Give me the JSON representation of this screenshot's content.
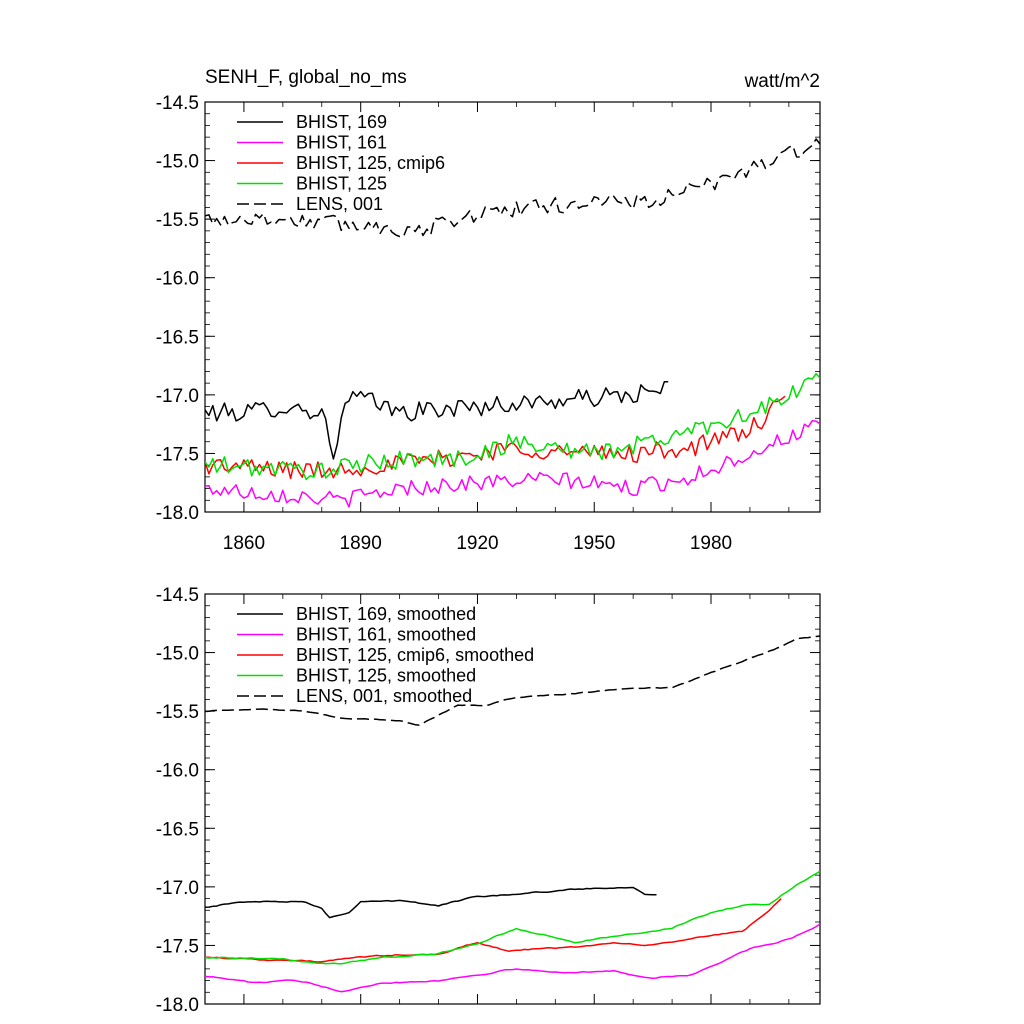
{
  "header": {
    "title_left": "SENH_F, global_no_ms",
    "title_right": "watt/m^2"
  },
  "colors": {
    "BHIST_169": "#000000",
    "BHIST_161": "#ff00ff",
    "BHIST_125_cmip6": "#ff0000",
    "BHIST_125": "#00e000",
    "LENS_001": "#000000"
  },
  "chart_data": [
    {
      "type": "line",
      "title": "SENH_F, global_no_ms",
      "units": "watt/m^2",
      "xlim": [
        1850,
        2008
      ],
      "ylim": [
        -18.0,
        -14.5
      ],
      "x_ticks": [
        1860,
        1890,
        1920,
        1950,
        1980
      ],
      "y_ticks": [
        -18.0,
        -17.5,
        -17.0,
        -16.5,
        -16.0,
        -15.5,
        -15.0,
        -14.5
      ],
      "y_tick_labels": [
        "-18.0",
        "-17.5",
        "-17.0",
        "-16.5",
        "-16.0",
        "-15.5",
        "-15.0",
        "-14.5"
      ],
      "x_tick_labels": [
        "1860",
        "1890",
        "1920",
        "1950",
        "1980"
      ],
      "legend_position": "top-left",
      "series": [
        {
          "name": "BHIST, 169",
          "color": "#000000",
          "dash": "solid",
          "x_start": 1850,
          "x_end": 1969,
          "keypoints": [
            [
              1850,
              -17.15
            ],
            [
              1860,
              -17.15
            ],
            [
              1870,
              -17.1
            ],
            [
              1880,
              -17.15
            ],
            [
              1883,
              -17.5
            ],
            [
              1885,
              -17.2
            ],
            [
              1888,
              -17.0
            ],
            [
              1900,
              -17.15
            ],
            [
              1920,
              -17.1
            ],
            [
              1940,
              -17.05
            ],
            [
              1960,
              -17.0
            ],
            [
              1969,
              -16.95
            ]
          ],
          "noise": 0.08
        },
        {
          "name": "BHIST, 161",
          "color": "#ff00ff",
          "dash": "solid",
          "x_start": 1850,
          "x_end": 2008,
          "keypoints": [
            [
              1850,
              -17.8
            ],
            [
              1870,
              -17.85
            ],
            [
              1885,
              -17.9
            ],
            [
              1900,
              -17.8
            ],
            [
              1920,
              -17.75
            ],
            [
              1940,
              -17.72
            ],
            [
              1960,
              -17.8
            ],
            [
              1975,
              -17.7
            ],
            [
              1990,
              -17.5
            ],
            [
              2008,
              -17.25
            ]
          ],
          "noise": 0.07
        },
        {
          "name": "BHIST, 125, cmip6",
          "color": "#ff0000",
          "dash": "solid",
          "x_start": 1850,
          "x_end": 1999,
          "keypoints": [
            [
              1850,
              -17.6
            ],
            [
              1880,
              -17.65
            ],
            [
              1895,
              -17.6
            ],
            [
              1910,
              -17.55
            ],
            [
              1920,
              -17.5
            ],
            [
              1930,
              -17.45
            ],
            [
              1945,
              -17.5
            ],
            [
              1960,
              -17.5
            ],
            [
              1975,
              -17.45
            ],
            [
              1990,
              -17.3
            ],
            [
              1999,
              -17.05
            ]
          ],
          "noise": 0.08
        },
        {
          "name": "BHIST, 125",
          "color": "#00e000",
          "dash": "solid",
          "x_start": 1850,
          "x_end": 2008,
          "keypoints": [
            [
              1850,
              -17.6
            ],
            [
              1880,
              -17.65
            ],
            [
              1900,
              -17.55
            ],
            [
              1915,
              -17.55
            ],
            [
              1930,
              -17.4
            ],
            [
              1950,
              -17.5
            ],
            [
              1965,
              -17.4
            ],
            [
              1980,
              -17.25
            ],
            [
              1995,
              -17.1
            ],
            [
              2008,
              -16.85
            ]
          ],
          "noise": 0.08
        },
        {
          "name": "LENS, 001",
          "color": "#000000",
          "dash": "dashed",
          "x_start": 1850,
          "x_end": 2008,
          "keypoints": [
            [
              1850,
              -15.5
            ],
            [
              1870,
              -15.5
            ],
            [
              1890,
              -15.55
            ],
            [
              1905,
              -15.6
            ],
            [
              1920,
              -15.45
            ],
            [
              1935,
              -15.4
            ],
            [
              1950,
              -15.35
            ],
            [
              1965,
              -15.35
            ],
            [
              1980,
              -15.2
            ],
            [
              1995,
              -15.0
            ],
            [
              2008,
              -14.85
            ]
          ],
          "noise": 0.07
        }
      ]
    },
    {
      "type": "line",
      "xlim": [
        1850,
        2008
      ],
      "ylim": [
        -18.0,
        -14.5
      ],
      "x_ticks": [
        1860,
        1890,
        1920,
        1950,
        1980
      ],
      "y_ticks": [
        -18.0,
        -17.5,
        -17.0,
        -16.5,
        -16.0,
        -15.5,
        -15.0,
        -14.5
      ],
      "y_tick_labels": [
        "-18.0",
        "-17.5",
        "-17.0",
        "-16.5",
        "-16.0",
        "-15.5",
        "-15.0",
        "-14.5"
      ],
      "legend_position": "top-left",
      "series": [
        {
          "name": "BHIST, 169, smoothed",
          "color": "#000000",
          "dash": "solid",
          "x_start": 1850,
          "x_end": 1966,
          "keypoints": [
            [
              1850,
              -17.17
            ],
            [
              1860,
              -17.13
            ],
            [
              1875,
              -17.12
            ],
            [
              1880,
              -17.18
            ],
            [
              1882,
              -17.26
            ],
            [
              1887,
              -17.22
            ],
            [
              1890,
              -17.12
            ],
            [
              1900,
              -17.12
            ],
            [
              1910,
              -17.16
            ],
            [
              1920,
              -17.08
            ],
            [
              1935,
              -17.05
            ],
            [
              1945,
              -17.02
            ],
            [
              1960,
              -17.0
            ],
            [
              1963,
              -17.06
            ],
            [
              1966,
              -17.06
            ]
          ],
          "noise": 0.012
        },
        {
          "name": "BHIST, 161, smoothed",
          "color": "#ff00ff",
          "dash": "solid",
          "x_start": 1850,
          "x_end": 2008,
          "keypoints": [
            [
              1850,
              -17.76
            ],
            [
              1863,
              -17.82
            ],
            [
              1872,
              -17.8
            ],
            [
              1878,
              -17.83
            ],
            [
              1885,
              -17.89
            ],
            [
              1895,
              -17.82
            ],
            [
              1910,
              -17.8
            ],
            [
              1920,
              -17.75
            ],
            [
              1930,
              -17.7
            ],
            [
              1940,
              -17.73
            ],
            [
              1955,
              -17.72
            ],
            [
              1965,
              -17.78
            ],
            [
              1975,
              -17.75
            ],
            [
              1980,
              -17.68
            ],
            [
              1990,
              -17.53
            ],
            [
              2000,
              -17.45
            ],
            [
              2008,
              -17.32
            ]
          ],
          "noise": 0.012
        },
        {
          "name": "BHIST, 125, cmip6, smoothed",
          "color": "#ff0000",
          "dash": "solid",
          "x_start": 1850,
          "x_end": 1998,
          "keypoints": [
            [
              1850,
              -17.6
            ],
            [
              1880,
              -17.64
            ],
            [
              1890,
              -17.6
            ],
            [
              1900,
              -17.58
            ],
            [
              1910,
              -17.58
            ],
            [
              1920,
              -17.47
            ],
            [
              1928,
              -17.55
            ],
            [
              1935,
              -17.53
            ],
            [
              1943,
              -17.52
            ],
            [
              1955,
              -17.48
            ],
            [
              1965,
              -17.5
            ],
            [
              1975,
              -17.44
            ],
            [
              1988,
              -17.38
            ],
            [
              1995,
              -17.2
            ],
            [
              1998,
              -17.1
            ]
          ],
          "noise": 0.012
        },
        {
          "name": "BHIST, 125, smoothed",
          "color": "#00e000",
          "dash": "solid",
          "x_start": 1850,
          "x_end": 2008,
          "keypoints": [
            [
              1850,
              -17.6
            ],
            [
              1870,
              -17.62
            ],
            [
              1885,
              -17.66
            ],
            [
              1895,
              -17.6
            ],
            [
              1910,
              -17.57
            ],
            [
              1920,
              -17.48
            ],
            [
              1930,
              -17.36
            ],
            [
              1945,
              -17.47
            ],
            [
              1960,
              -17.4
            ],
            [
              1970,
              -17.35
            ],
            [
              1980,
              -17.22
            ],
            [
              1988,
              -17.16
            ],
            [
              1995,
              -17.15
            ],
            [
              2001,
              -17.0
            ],
            [
              2008,
              -16.87
            ]
          ],
          "noise": 0.012
        },
        {
          "name": "LENS, 001, smoothed",
          "color": "#000000",
          "dash": "dashed",
          "x_start": 1850,
          "x_end": 2008,
          "keypoints": [
            [
              1850,
              -15.5
            ],
            [
              1862,
              -15.48
            ],
            [
              1875,
              -15.5
            ],
            [
              1885,
              -15.56
            ],
            [
              1900,
              -15.58
            ],
            [
              1905,
              -15.62
            ],
            [
              1915,
              -15.45
            ],
            [
              1922,
              -15.45
            ],
            [
              1930,
              -15.38
            ],
            [
              1945,
              -15.35
            ],
            [
              1960,
              -15.3
            ],
            [
              1970,
              -15.3
            ],
            [
              1980,
              -15.17
            ],
            [
              1990,
              -15.05
            ],
            [
              1998,
              -14.95
            ],
            [
              2002,
              -14.88
            ],
            [
              2008,
              -14.86
            ]
          ],
          "noise": 0.008
        }
      ]
    }
  ]
}
